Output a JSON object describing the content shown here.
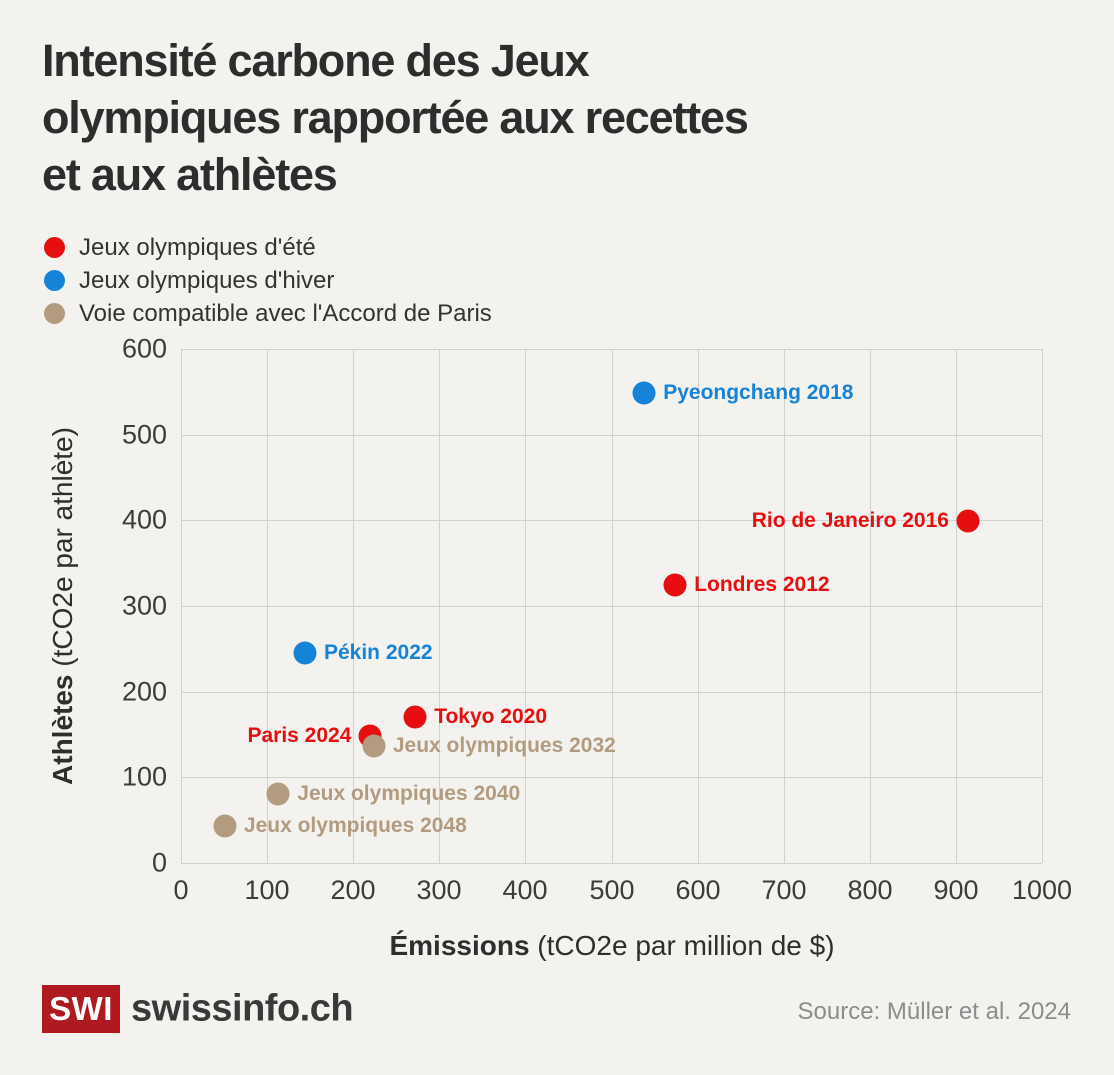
{
  "page": {
    "background": "#f3f2ef"
  },
  "header": {
    "title_lines": [
      "Intensité carbone des Jeux",
      "olympiques rapportée aux recettes",
      "et aux athlètes"
    ]
  },
  "legend": {
    "items": [
      {
        "label": "Jeux olympiques d'été",
        "color": "#e60e0e"
      },
      {
        "label": "Jeux olympiques d'hiver",
        "color": "#1583d7"
      },
      {
        "label": "Voie compatible avec l'Accord de Paris",
        "color": "#b29b7f"
      }
    ]
  },
  "chart_data": {
    "type": "scatter",
    "title": "Intensité carbone des Jeux olympiques rapportée aux recettes et aux athlètes",
    "xlabel_bold": "Émissions",
    "xlabel_rest": " (tCO2e par million de $)",
    "ylabel_bold": "Athlètes",
    "ylabel_rest": " (tCO2e par athlète)",
    "xlim": [
      0,
      1000
    ],
    "ylim": [
      0,
      600
    ],
    "xticks": [
      0,
      100,
      200,
      300,
      400,
      500,
      600,
      700,
      800,
      900,
      1000
    ],
    "yticks": [
      0,
      100,
      200,
      300,
      400,
      500,
      600
    ],
    "grid": true,
    "legend_position": "top-left",
    "series": [
      {
        "name": "Jeux olympiques d'été",
        "color": "#e60e0e",
        "points": [
          {
            "label": "Rio de Janeiro 2016",
            "x": 914,
            "y": 399,
            "label_side": "left"
          },
          {
            "label": "Londres 2012",
            "x": 574,
            "y": 325,
            "label_side": "right"
          },
          {
            "label": "Tokyo 2020",
            "x": 272,
            "y": 170,
            "label_side": "right"
          },
          {
            "label": "Paris 2024",
            "x": 220,
            "y": 148,
            "label_side": "left"
          }
        ]
      },
      {
        "name": "Jeux olympiques d'hiver",
        "color": "#1583d7",
        "points": [
          {
            "label": "Pyeongchang 2018",
            "x": 538,
            "y": 549,
            "label_side": "right"
          },
          {
            "label": "Pékin 2022",
            "x": 144,
            "y": 245,
            "label_side": "right"
          }
        ]
      },
      {
        "name": "Voie compatible avec l'Accord de Paris",
        "color": "#b29b7f",
        "points": [
          {
            "label": "Jeux olympiques 2032",
            "x": 224,
            "y": 137,
            "label_side": "right"
          },
          {
            "label": "Jeux olympiques 2040",
            "x": 113,
            "y": 81,
            "label_side": "right"
          },
          {
            "label": "Jeux olympiques 2048",
            "x": 51,
            "y": 43,
            "label_side": "right"
          }
        ]
      }
    ]
  },
  "footer": {
    "logo_text": "SWI",
    "brand": "swissinfo.ch",
    "source": "Source: Müller et al. 2024",
    "logo_color": "#ae1a20"
  }
}
